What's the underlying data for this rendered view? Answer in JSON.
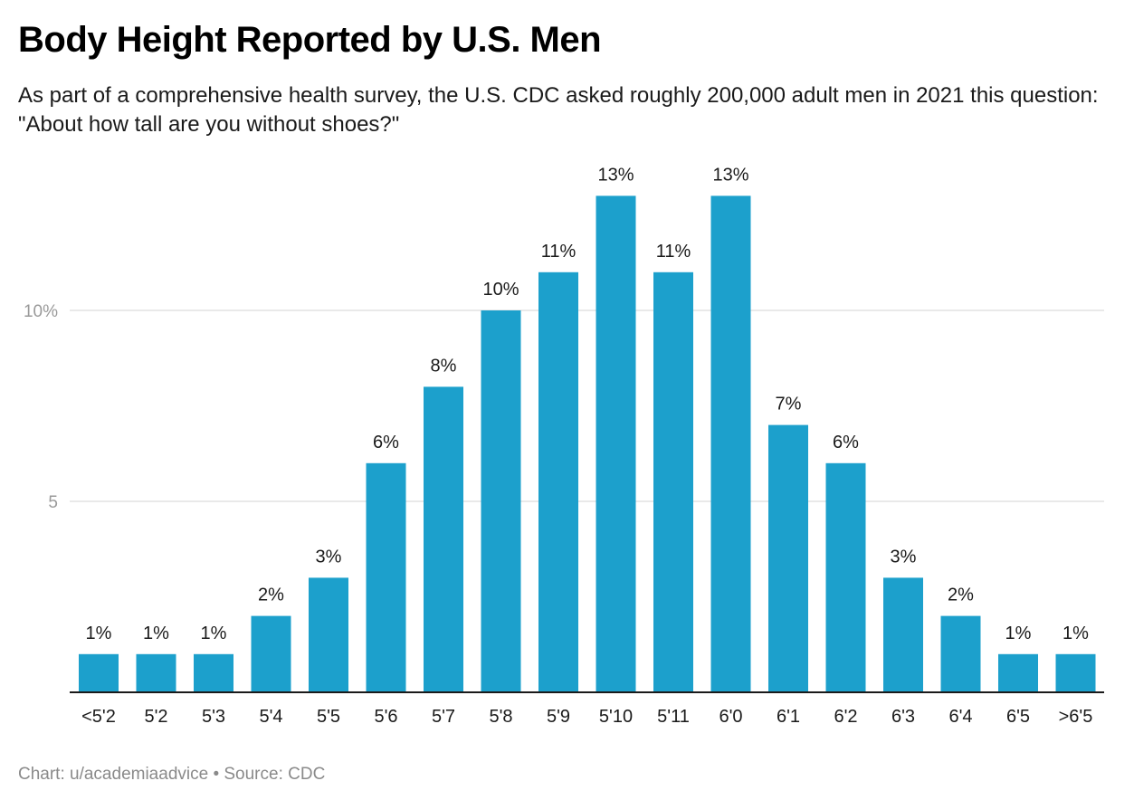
{
  "title": "Body Height Reported by U.S. Men",
  "subtitle": "As part of a comprehensive health survey, the U.S. CDC asked roughly 200,000 adult men in 2021 this question: \"About how tall are you without shoes?\"",
  "footer": "Chart: u/academiaadvice • Source: CDC",
  "colors": {
    "bar": "#1ca0cc",
    "gridline": "#e2e2e2",
    "axis": "#1a1a1a"
  },
  "chart_data": {
    "type": "bar",
    "title": "Body Height Reported by U.S. Men",
    "subtitle": "As part of a comprehensive health survey, the U.S. CDC asked roughly 200,000 adult men in 2021 this question: \"About how tall are you without shoes?\"",
    "xlabel": "",
    "ylabel": "",
    "categories": [
      "<5'2",
      "5'2",
      "5'3",
      "5'4",
      "5'5",
      "5'6",
      "5'7",
      "5'8",
      "5'9",
      "5'10",
      "5'11",
      "6'0",
      "6'1",
      "6'2",
      "6'3",
      "6'4",
      "6'5",
      ">6'5"
    ],
    "values": [
      1,
      1,
      1,
      2,
      3,
      6,
      8,
      10,
      11,
      13,
      11,
      13,
      7,
      6,
      3,
      2,
      1,
      1
    ],
    "data_labels": [
      "1%",
      "1%",
      "1%",
      "2%",
      "3%",
      "6%",
      "8%",
      "10%",
      "11%",
      "13%",
      "11%",
      "13%",
      "7%",
      "6%",
      "3%",
      "2%",
      "1%",
      "1%"
    ],
    "ylim": [
      0,
      13
    ],
    "yticks": [
      {
        "value": 5,
        "label": "5"
      },
      {
        "value": 10,
        "label": "10%"
      }
    ],
    "grid": true,
    "legend": "none",
    "source": "Chart: u/academiaadvice • Source: CDC"
  }
}
